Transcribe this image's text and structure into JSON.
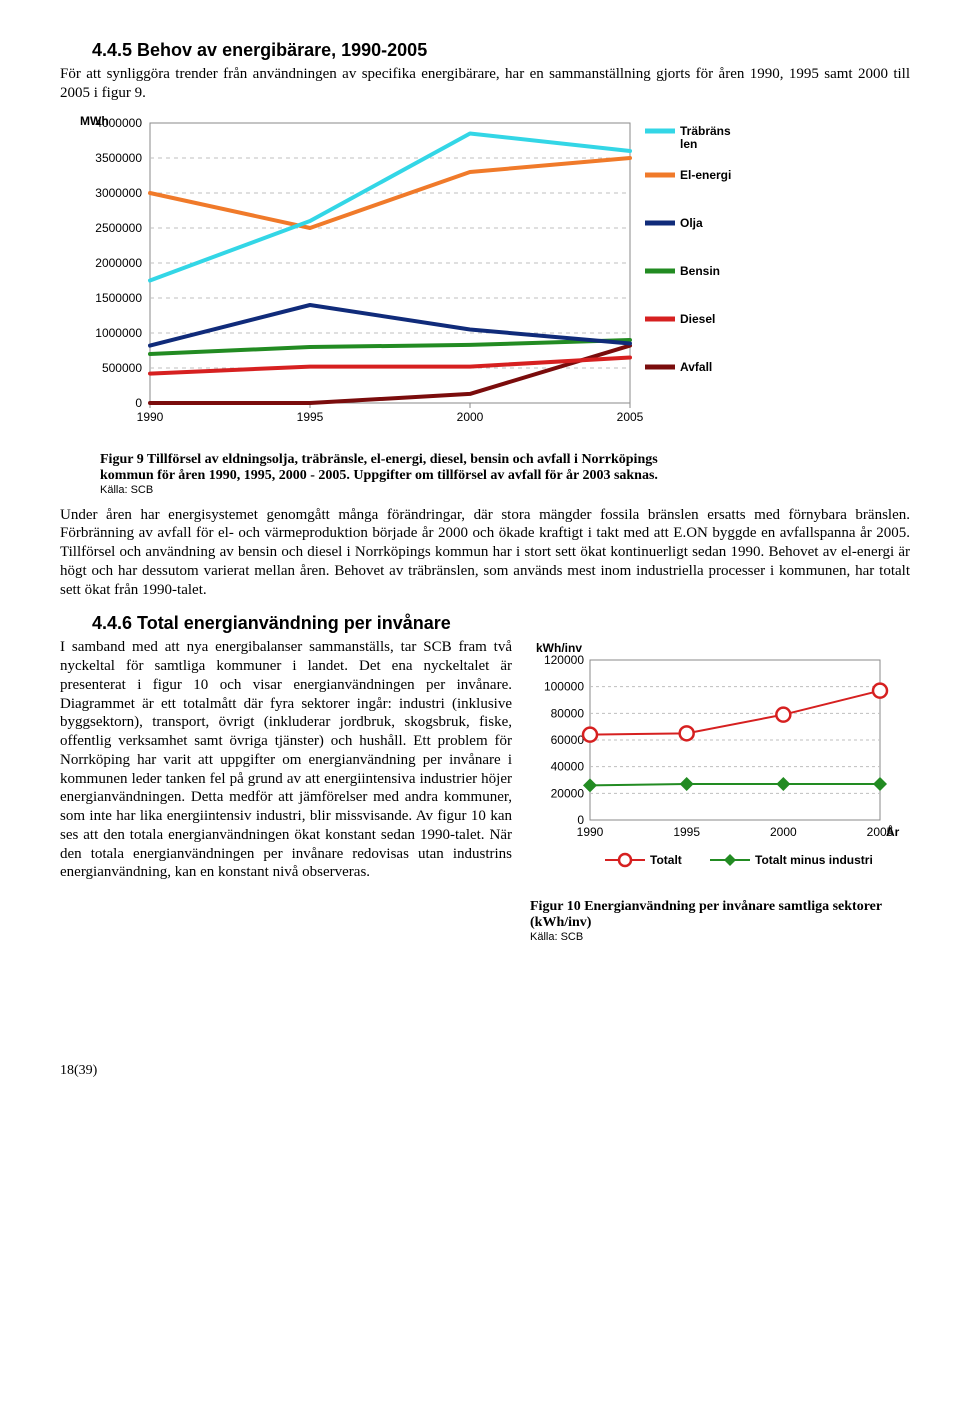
{
  "section445": {
    "heading": "4.4.5 Behov av energibärare, 1990-2005",
    "intro": "För att synliggöra trender från användningen av specifika energibärare, har en sammanställning gjorts för åren 1990, 1995 samt 2000 till 2005 i figur 9."
  },
  "fig9": {
    "type": "line",
    "y_unit": "MWh",
    "x_labels": [
      "1990",
      "1995",
      "2000",
      "2005"
    ],
    "y_ticks": [
      0,
      500000,
      1000000,
      1500000,
      2000000,
      2500000,
      3000000,
      3500000,
      4000000
    ],
    "legend": {
      "trabranslen": "Träbränslen",
      "el": "El-energi",
      "olja": "Olja",
      "bensin": "Bensin",
      "diesel": "Diesel",
      "avfall": "Avfall"
    },
    "colors": {
      "trabranslen": "#33d6e6",
      "el": "#f07a2a",
      "olja": "#102b7a",
      "bensin": "#228b22",
      "diesel": "#d62020",
      "avfall": "#7a0c0c",
      "grid": "#bfbfbf",
      "border": "#8a8a8a"
    },
    "series": {
      "trabranslen": [
        1750000,
        2600000,
        3850000,
        3600000
      ],
      "el": [
        3000000,
        2500000,
        3300000,
        3500000
      ],
      "olja": [
        820000,
        1400000,
        1050000,
        850000
      ],
      "bensin": [
        700000,
        800000,
        830000,
        900000
      ],
      "diesel": [
        420000,
        520000,
        520000,
        650000
      ],
      "avfall": [
        0,
        0,
        130000,
        820000
      ]
    },
    "line_width": 4,
    "caption": "Figur 9 Tillförsel av eldningsolja, träbränsle, el-energi, diesel, bensin och avfall i Norrköpings kommun för åren 1990, 1995, 2000 - 2005. Uppgifter om tillförsel av avfall för år 2003 saknas.",
    "src": "Källa: SCB"
  },
  "bodytext": "Under åren har energisystemet genomgått många förändringar, där stora mängder fossila bränslen ersatts med förnybara bränslen. Förbränning av avfall för el- och värmeproduktion började år 2000 och ökade kraftigt i takt med att E.ON byggde en avfallspanna år 2005. Tillförsel och användning av bensin och diesel i Norrköpings kommun har i stort sett ökat kontinuerligt sedan 1990. Behovet av el-energi är högt och har dessutom varierat mellan åren. Behovet av träbränslen, som används mest inom industriella processer i kommunen, har totalt sett ökat från 1990-talet.",
  "section446": {
    "heading": "4.4.6 Total energianvändning per invånare",
    "text": "I samband med att nya energibalanser sammanställs, tar SCB fram två nyckeltal för samtliga kommuner i landet. Det ena nyckeltalet är presenterat i figur 10 och visar energianvändningen per invånare. Diagrammet är ett totalmått där fyra sektorer ingår: industri (inklusive byggsektorn), transport, övrigt (inkluderar jordbruk, skogsbruk, fiske, offentlig verksamhet samt övriga tjänster) och hushåll. Ett problem för Norrköping har varit att uppgifter om energianvändning per invånare i kommunen leder tanken fel på grund av att energiintensiva industrier höjer energianvändningen. Detta medför att jämförelser med andra kommuner, som inte har lika energiintensiv industri, blir missvisande. Av figur 10 kan ses att den totala energianvändningen ökat konstant sedan 1990-talet. När den totala energianvändningen per invånare redovisas utan industrins energianvändning, kan en konstant nivå observeras."
  },
  "fig10": {
    "type": "line-marker",
    "y_unit": "kWh/inv",
    "x_label": "År",
    "x_labels": [
      "1990",
      "1995",
      "2000",
      "2005"
    ],
    "y_ticks": [
      0,
      20000,
      40000,
      60000,
      80000,
      100000,
      120000
    ],
    "legend": {
      "totalt": "Totalt",
      "minus": "Totalt minus industri"
    },
    "colors": {
      "totalt_line": "#d62020",
      "totalt_marker_fill": "#ffffff",
      "totalt_marker_stroke": "#d62020",
      "minus_line": "#228b22",
      "minus_marker": "#228b22",
      "grid": "#bfbfbf",
      "border": "#8a8a8a"
    },
    "series": {
      "totalt": [
        64000,
        65000,
        79000,
        97000
      ],
      "minus": [
        26000,
        27000,
        27000,
        27000
      ]
    },
    "marker_size": 7,
    "line_width": 2,
    "caption": "Figur 10 Energianvändning per invånare samtliga sektorer (kWh/inv)",
    "src": "Källa: SCB"
  },
  "footer": "18(39)"
}
